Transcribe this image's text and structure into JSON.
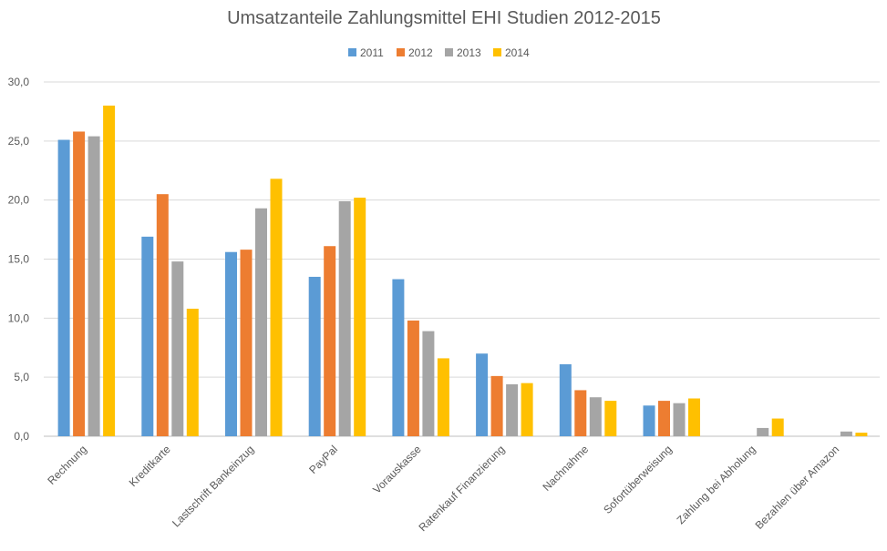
{
  "chart_data": {
    "type": "bar",
    "title": "Umsatzanteile Zahlungsmittel EHI Studien 2012-2015",
    "xlabel": "",
    "ylabel": "",
    "ylim": [
      0,
      30
    ],
    "y_ticks": [
      "0,0",
      "5,0",
      "10,0",
      "15,0",
      "20,0",
      "25,0",
      "30,0"
    ],
    "grid": true,
    "legend_position": "top",
    "categories": [
      "Rechnung",
      "Kreditkarte",
      "Lastschrift Bankeinzug",
      "PayPal",
      "Vorauskasse",
      "Ratenkauf Finanzierung",
      "Nachnahme",
      "Sofortüberweisung",
      "Zahlung bei Abholung",
      "Bezahlen über Amazon"
    ],
    "series": [
      {
        "name": "2011",
        "color": "#5b9bd5",
        "values": [
          25.1,
          16.9,
          15.6,
          13.5,
          13.3,
          7.0,
          6.1,
          2.6,
          null,
          null
        ]
      },
      {
        "name": "2012",
        "color": "#ed7d31",
        "values": [
          25.8,
          20.5,
          15.8,
          16.1,
          9.8,
          5.1,
          3.9,
          3.0,
          null,
          null
        ]
      },
      {
        "name": "2013",
        "color": "#a5a5a5",
        "values": [
          25.4,
          14.8,
          19.3,
          19.9,
          8.9,
          4.4,
          3.3,
          2.8,
          0.7,
          0.4
        ]
      },
      {
        "name": "2014",
        "color": "#ffc000",
        "values": [
          28.0,
          10.8,
          21.8,
          20.2,
          6.6,
          4.5,
          3.0,
          3.2,
          1.5,
          0.3
        ]
      }
    ]
  }
}
